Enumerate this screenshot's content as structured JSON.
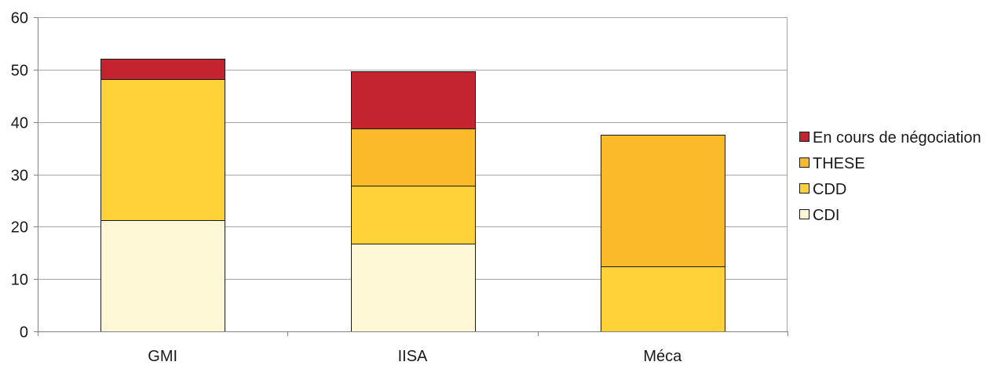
{
  "chart_data": {
    "type": "bar",
    "stacked": true,
    "categories": [
      "GMI",
      "IISA",
      "Méca"
    ],
    "series": [
      {
        "name": "CDI",
        "color": "#FFF8D6",
        "values": [
          21.3,
          16.8,
          0
        ]
      },
      {
        "name": "CDD",
        "color": "#FFD23A",
        "values": [
          26.9,
          11.0,
          12.4
        ]
      },
      {
        "name": "THESE",
        "color": "#FBBA2A",
        "values": [
          0,
          11.0,
          25.2
        ]
      },
      {
        "name": "En cours de négociation",
        "color": "#C42430",
        "values": [
          3.9,
          10.9,
          0
        ]
      }
    ],
    "ylim": [
      0,
      60
    ],
    "yticks": [
      "0",
      "10",
      "20",
      "30",
      "40",
      "50",
      "60"
    ],
    "grid": true,
    "legend_position": "right",
    "legend_order": [
      "En cours de négociation",
      "THESE",
      "CDD",
      "CDI"
    ]
  }
}
